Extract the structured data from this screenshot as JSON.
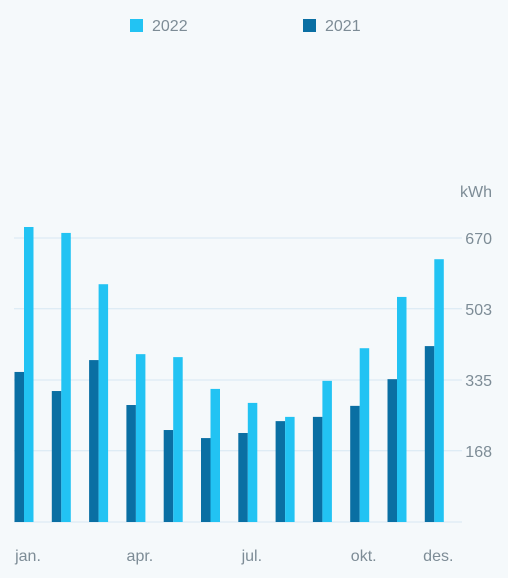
{
  "chart_data": {
    "type": "bar",
    "y_label": "kWh",
    "categories": [
      "jan.",
      null,
      null,
      "apr.",
      null,
      null,
      "jul.",
      null,
      null,
      "okt.",
      null,
      "des."
    ],
    "series": [
      {
        "name": "2022",
        "color": "#22c3f3",
        "values": [
          696,
          682,
          561,
          396,
          389,
          314,
          281,
          248,
          333,
          410,
          531,
          620
        ]
      },
      {
        "name": "2021",
        "color": "#0a6fa3",
        "values": [
          354,
          309,
          382,
          276,
          217,
          198,
          210,
          238,
          248,
          274,
          337,
          415
        ]
      }
    ],
    "ylim": [
      0,
      700
    ],
    "yticks": [
      168,
      335,
      503,
      670
    ],
    "grid": true
  }
}
